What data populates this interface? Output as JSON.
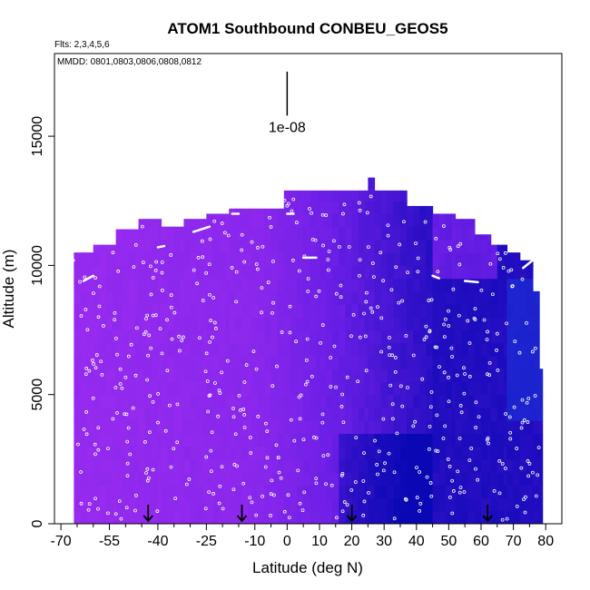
{
  "chart_data": {
    "type": "heatmap",
    "title": "ATOM1 Southbound CONBEU_GEOS5",
    "notes": {
      "flights": "Flts: 2,3,4,5,6",
      "dates": "MMDD: 0801,0803,0806,0808,0812"
    },
    "xlabel": "Latitude (deg N)",
    "ylabel": "Altitude (m)",
    "xlim": [
      -72,
      85
    ],
    "ylim": [
      0,
      18200
    ],
    "x_ticks": [
      -70,
      -55,
      -40,
      -25,
      -10,
      0,
      10,
      20,
      30,
      40,
      50,
      60,
      70,
      80
    ],
    "x_tick_labels": [
      "-70",
      "-55",
      "-40",
      "-25",
      "-10",
      "0",
      "10",
      "20",
      "30",
      "40",
      "50",
      "60",
      "70",
      "80"
    ],
    "x_minor_ticks": [
      -65,
      -60,
      -50,
      -45,
      -35,
      -30,
      -20,
      -15,
      -5,
      5,
      15,
      25,
      35,
      45,
      55,
      65,
      75
    ],
    "y_ticks": [
      0,
      5000,
      10000,
      15000
    ],
    "y_tick_labels": [
      "0",
      "5000",
      "10000",
      "15000"
    ],
    "scale_bar": {
      "label": "1e-08",
      "x": 0,
      "y_top": 17500,
      "y_bottom": 15800
    },
    "arrows_latitude": [
      -43,
      -14,
      20,
      62
    ],
    "colors": {
      "low": "#9b2cf0",
      "mid": "#6a1ee6",
      "high": "#0a08b4",
      "peak": "#1a32d8",
      "points": "#ffffff"
    },
    "curtain_top": [
      {
        "x0": -66,
        "x1": -60,
        "top": 10500
      },
      {
        "x0": -60,
        "x1": -53,
        "top": 10800
      },
      {
        "x0": -53,
        "x1": -46,
        "top": 11400
      },
      {
        "x0": -46,
        "x1": -39,
        "top": 11800
      },
      {
        "x0": -39,
        "x1": -32,
        "top": 11500
      },
      {
        "x0": -32,
        "x1": -25,
        "top": 11800
      },
      {
        "x0": -25,
        "x1": -18,
        "top": 12000
      },
      {
        "x0": -18,
        "x1": -11,
        "top": 12200
      },
      {
        "x0": -11,
        "x1": -1,
        "top": 12200
      },
      {
        "x0": -1,
        "x1": 10,
        "top": 12900
      },
      {
        "x0": 10,
        "x1": 25,
        "top": 12900
      },
      {
        "x0": 25,
        "x1": 27,
        "top": 13400
      },
      {
        "x0": 27,
        "x1": 37,
        "top": 12900
      },
      {
        "x0": 37,
        "x1": 45,
        "top": 12300
      },
      {
        "x0": 45,
        "x1": 52,
        "top": 12000
      },
      {
        "x0": 52,
        "x1": 58,
        "top": 11800
      },
      {
        "x0": 58,
        "x1": 63,
        "top": 11200
      },
      {
        "x0": 63,
        "x1": 68,
        "top": 10800
      },
      {
        "x0": 68,
        "x1": 72,
        "top": 10500
      },
      {
        "x0": 72,
        "x1": 76,
        "top": 10200
      },
      {
        "x0": 76,
        "x1": 78,
        "top": 9000
      },
      {
        "x0": 78,
        "x1": 79,
        "top": 6000
      }
    ]
  }
}
